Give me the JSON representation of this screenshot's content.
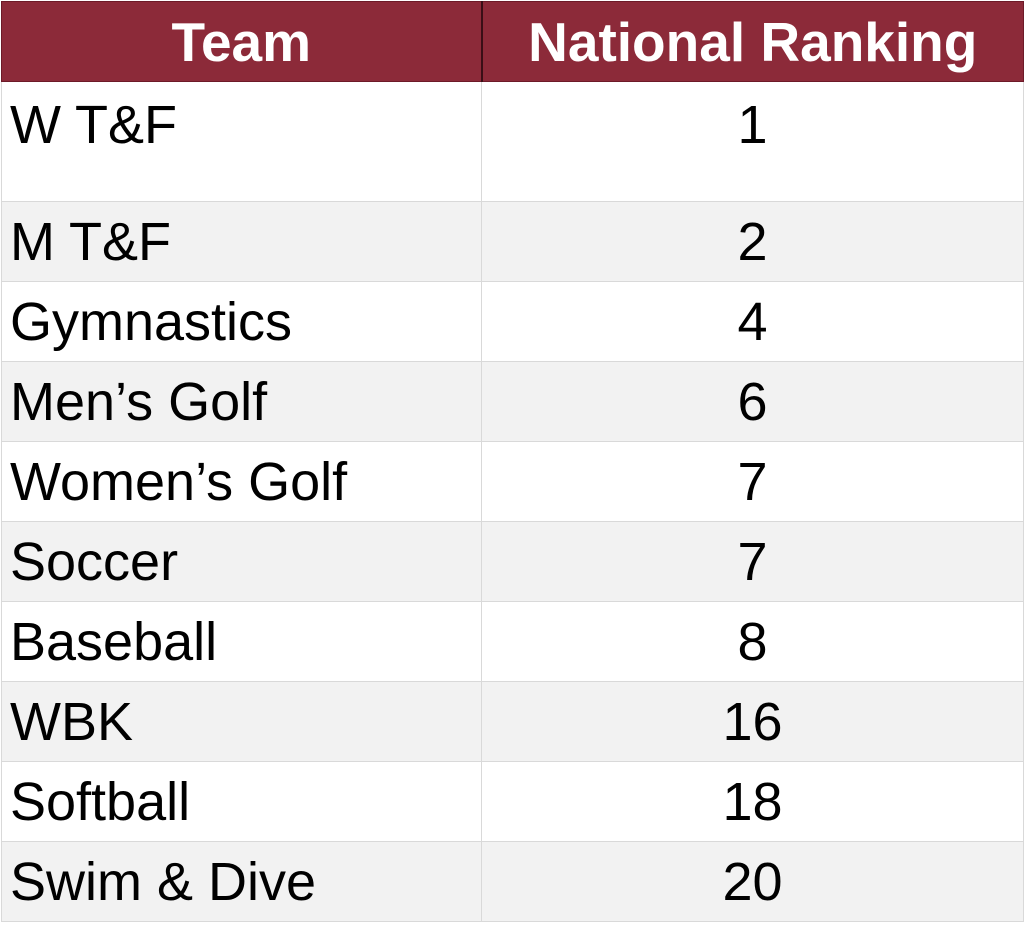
{
  "table": {
    "header_color": "#8c2a39",
    "columns": [
      "Team",
      "National Ranking"
    ],
    "rows": [
      {
        "team": "W T&F",
        "rank": "1"
      },
      {
        "team": "M T&F",
        "rank": "2"
      },
      {
        "team": "Gymnastics",
        "rank": "4"
      },
      {
        "team": "Men’s Golf",
        "rank": "6"
      },
      {
        "team": "Women’s Golf",
        "rank": "7"
      },
      {
        "team": "Soccer",
        "rank": "7"
      },
      {
        "team": "Baseball",
        "rank": "8"
      },
      {
        "team": "WBK",
        "rank": "16"
      },
      {
        "team": "Softball",
        "rank": "18"
      },
      {
        "team": "Swim & Dive",
        "rank": "20"
      }
    ]
  }
}
